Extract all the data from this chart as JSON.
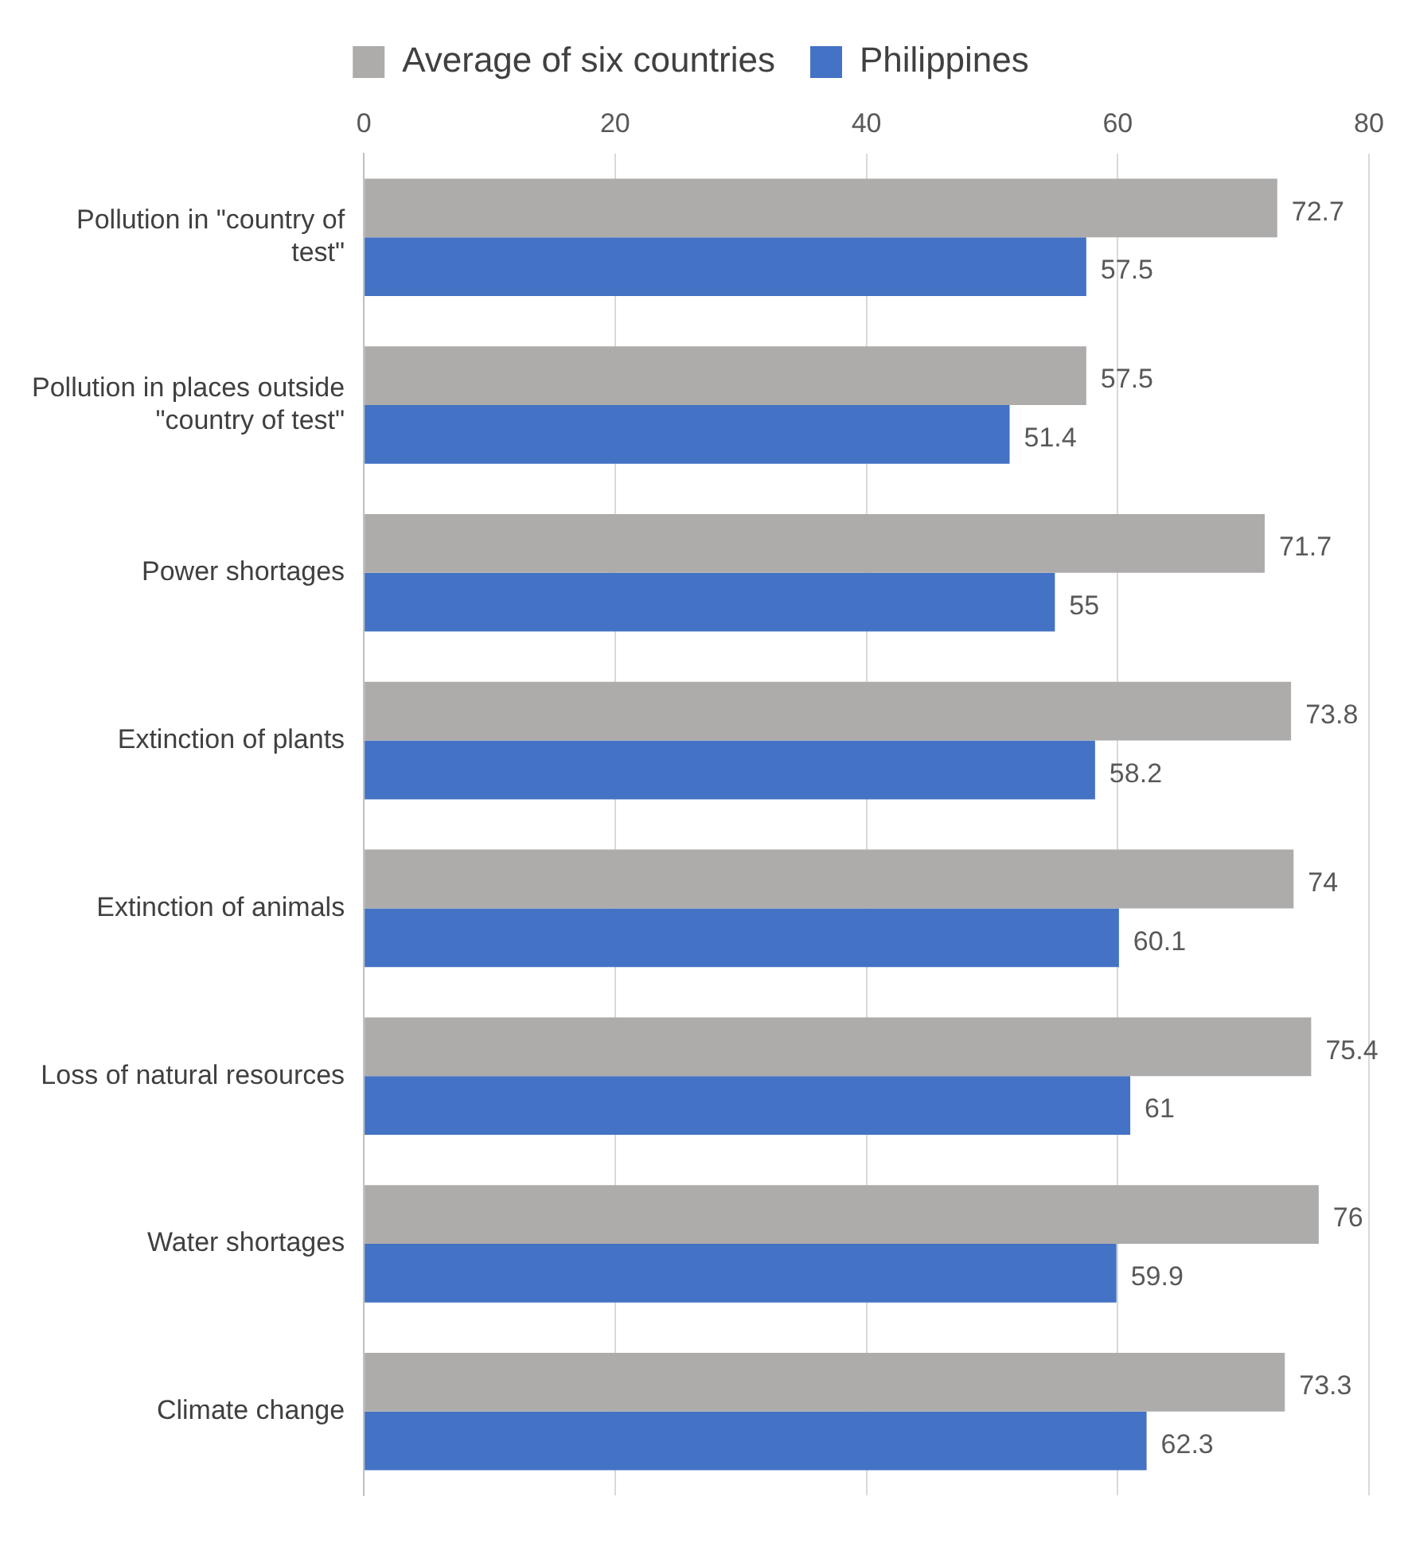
{
  "chart_data": {
    "type": "bar",
    "orientation": "horizontal",
    "categories": [
      "Pollution in \"country of test\"",
      "Pollution in places outside \"country of test\"",
      "Power shortages",
      "Extinction of plants",
      "Extinction of animals",
      "Loss of natural resources",
      "Water shortages",
      "Climate change"
    ],
    "series": [
      {
        "name": "Average of six countries",
        "color": "#aeabab",
        "values": [
          72.7,
          57.5,
          71.7,
          73.8,
          74,
          75.4,
          76,
          73.3
        ]
      },
      {
        "name": "Philippines",
        "color": "#4472c4",
        "values": [
          57.5,
          51.4,
          55,
          58.2,
          60.1,
          61,
          59.9,
          62.3
        ]
      }
    ],
    "xlim": [
      0,
      80
    ],
    "xticks": [
      0,
      20,
      40,
      60,
      80
    ],
    "grid": "x",
    "legend": "top",
    "data_labels": true
  }
}
